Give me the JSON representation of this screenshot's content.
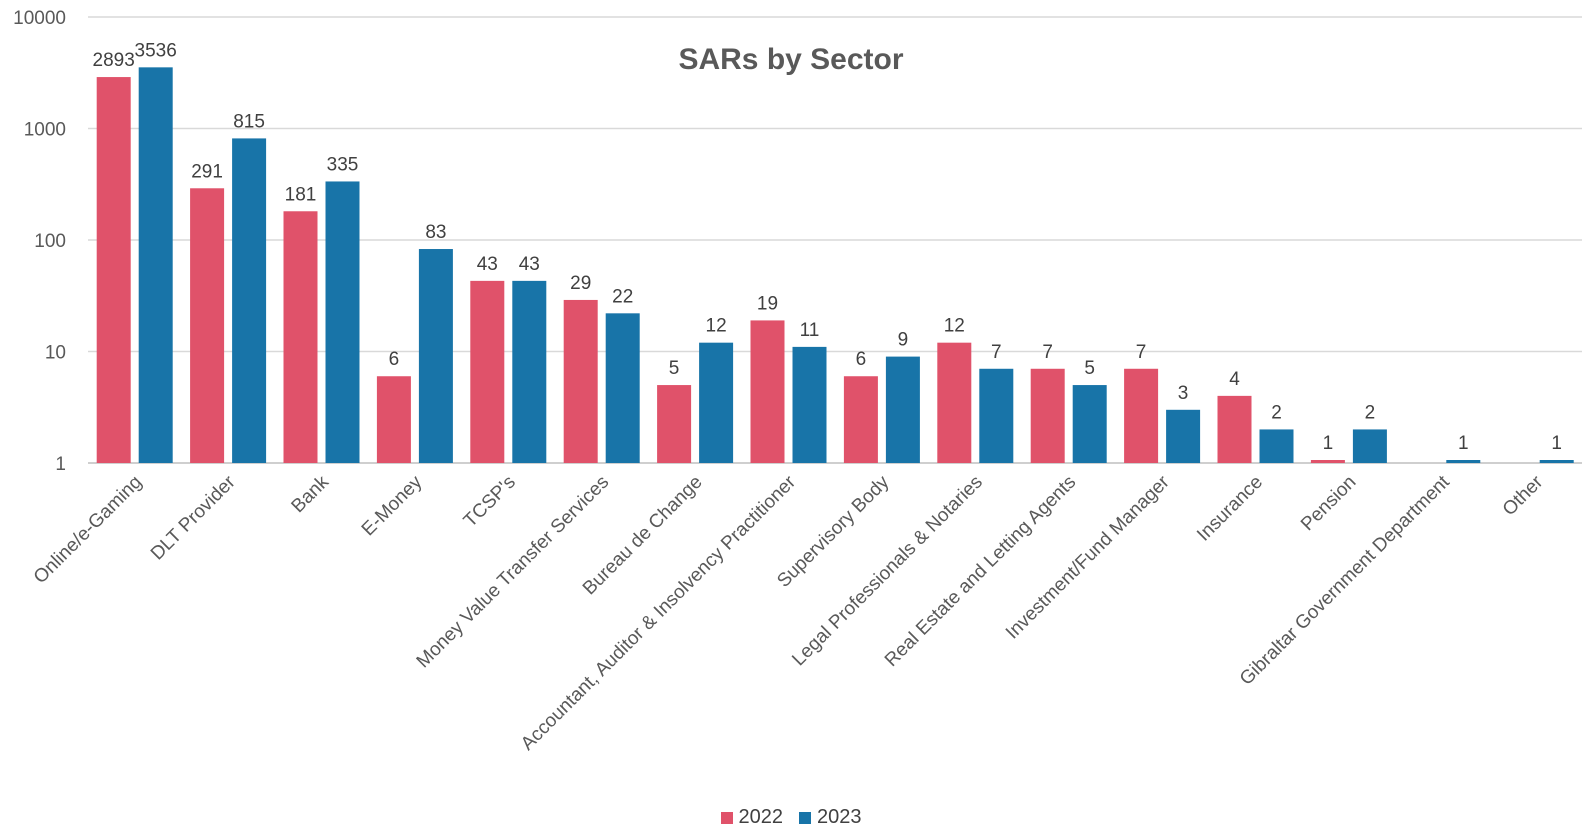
{
  "chart_data": {
    "type": "bar",
    "title": "SARs by Sector",
    "scale": "log10",
    "ylim": [
      1,
      10000
    ],
    "yticks": [
      "1",
      "10",
      "100",
      "1000",
      "10000"
    ],
    "grid": true,
    "legend_position": "bottom",
    "categories": [
      "Online/e-Gaming",
      "DLT Provider",
      "Bank",
      "E-Money",
      "TCSP's",
      "Money Value Transfer Services",
      "Bureau de Change",
      "Accountant, Auditor & Insolvency Practitioner",
      "Supervisory Body",
      "Legal Professionals & Notaries",
      "Real Estate and Letting Agents",
      "Investment/Fund Manager",
      "Insurance",
      "Pension",
      "Gibraltar Government Department",
      "Other"
    ],
    "series": [
      {
        "name": "2022",
        "color": "#E0526A",
        "values": [
          2893,
          291,
          181,
          6,
          43,
          29,
          5,
          19,
          6,
          12,
          7,
          7,
          4,
          1,
          null,
          null
        ]
      },
      {
        "name": "2023",
        "color": "#1874A8",
        "values": [
          3536,
          815,
          335,
          83,
          43,
          22,
          12,
          11,
          9,
          7,
          5,
          3,
          2,
          2,
          1,
          1
        ]
      }
    ]
  }
}
